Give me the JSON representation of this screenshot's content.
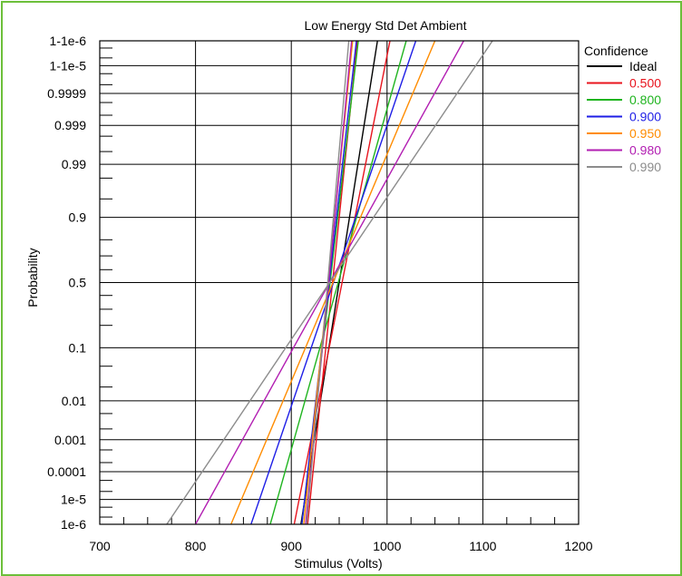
{
  "chart_data": {
    "type": "line",
    "title": "Low Energy Std Det Ambient",
    "xlabel": "Stimulus (Volts)",
    "ylabel": "Probability",
    "xlim": [
      700,
      1200
    ],
    "x_ticks": [
      700,
      800,
      900,
      1000,
      1100,
      1200
    ],
    "y_scale": "probit",
    "y_ticks": [
      {
        "label": "1-1e-6",
        "p": 0.999999
      },
      {
        "label": "1-1e-5",
        "p": 0.99999
      },
      {
        "label": "0.9999",
        "p": 0.9999
      },
      {
        "label": "0.999",
        "p": 0.999
      },
      {
        "label": "0.99",
        "p": 0.99
      },
      {
        "label": "0.9",
        "p": 0.9
      },
      {
        "label": "0.5",
        "p": 0.5
      },
      {
        "label": "0.1",
        "p": 0.1
      },
      {
        "label": "0.01",
        "p": 0.01
      },
      {
        "label": "0.001",
        "p": 0.001
      },
      {
        "label": "0.0001",
        "p": 0.0001
      },
      {
        "label": "1e-5",
        "p": 1e-05
      },
      {
        "label": "1e-6",
        "p": 1e-06
      }
    ],
    "grid": true,
    "legend_title": "Confidence",
    "legend_position": "right",
    "series": [
      {
        "name": "Ideal",
        "color": "#000000",
        "lines": [
          {
            "points": [
              [
                910,
                1e-06
              ],
              [
                990,
                0.999999
              ]
            ]
          }
        ]
      },
      {
        "name": "0.500",
        "color": "#e8141e",
        "lines": [
          {
            "points": [
              [
                903,
                1e-06
              ],
              [
                1003,
                0.999999
              ]
            ]
          },
          {
            "points": [
              [
                917,
                1e-06
              ],
              [
                969,
                0.999999
              ]
            ]
          }
        ]
      },
      {
        "name": "0.800",
        "color": "#1fb41f",
        "lines": [
          {
            "points": [
              [
                878,
                1e-06
              ],
              [
                1020,
                0.999999
              ]
            ]
          },
          {
            "points": [
              [
                911,
                1e-06
              ],
              [
                970,
                0.999999
              ]
            ]
          }
        ]
      },
      {
        "name": "0.900",
        "color": "#1e1ee6",
        "lines": [
          {
            "points": [
              [
                858,
                1e-06
              ],
              [
                1030,
                0.999999
              ]
            ]
          },
          {
            "points": [
              [
                911,
                1e-06
              ],
              [
                968,
                0.999999
              ]
            ]
          }
        ]
      },
      {
        "name": "0.950",
        "color": "#ff8c00",
        "lines": [
          {
            "points": [
              [
                837,
                1e-06
              ],
              [
                1050,
                0.999999
              ]
            ]
          },
          {
            "points": [
              [
                913,
                1e-06
              ],
              [
                964,
                0.999999
              ]
            ]
          }
        ]
      },
      {
        "name": "0.980",
        "color": "#b21eb2",
        "lines": [
          {
            "points": [
              [
                800,
                1e-06
              ],
              [
                1080,
                0.999999
              ]
            ]
          },
          {
            "points": [
              [
                915,
                1e-06
              ],
              [
                963,
                0.999999
              ]
            ]
          }
        ]
      },
      {
        "name": "0.990",
        "color": "#8c8c8c",
        "lines": [
          {
            "points": [
              [
                770,
                1e-06
              ],
              [
                1110,
                0.999999
              ]
            ]
          },
          {
            "points": [
              [
                916,
                1e-06
              ],
              [
                960,
                0.999999
              ]
            ]
          }
        ]
      }
    ]
  }
}
